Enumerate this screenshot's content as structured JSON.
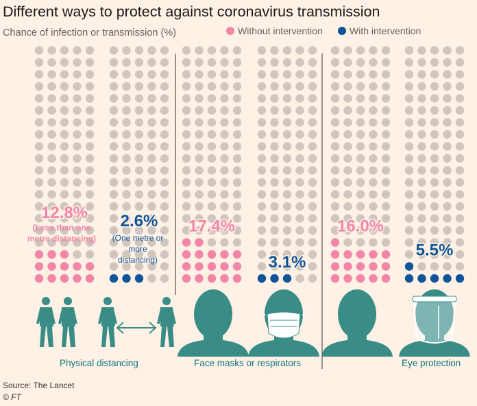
{
  "title": "Different ways to protect against coronavirus transmission",
  "subtitle": "Chance of infection or transmission (%)",
  "legend": {
    "without": "Without intervention",
    "with": "With  intervention"
  },
  "colors": {
    "without": "#f285a8",
    "with": "#0f5499",
    "empty": "#cec6bf",
    "icon": "#3a8d87",
    "label": "#0d7680",
    "divider": "#33302e"
  },
  "categories": {
    "physical": {
      "label": "Physical distancing",
      "without_note": "(Less than one metre distancing)",
      "with_note": "(One metre or more distancing)"
    },
    "masks": {
      "label": "Face masks or respirators"
    },
    "eyes": {
      "label": "Eye protection"
    }
  },
  "icons": [
    "walking-person-icon",
    "walking-person-icon",
    "walking-person-icon",
    "double-arrow-icon",
    "walking-person-icon",
    "head-icon",
    "face-mask-icon",
    "head-icon",
    "face-shield-icon"
  ],
  "source": "Source: The Lancet",
  "credit": "© FT",
  "chart_data": {
    "type": "waffle",
    "title": "Different ways to protect against coronavirus transmission",
    "ylabel": "Chance of infection or transmission (%)",
    "units_per_grid": 100,
    "series": [
      {
        "category": "Physical distancing",
        "name": "Without intervention",
        "value": 12.8,
        "label": "12.8%"
      },
      {
        "category": "Physical distancing",
        "name": "With intervention",
        "value": 2.6,
        "label": "2.6%"
      },
      {
        "category": "Face masks or respirators",
        "name": "Without intervention",
        "value": 17.4,
        "label": "17.4%"
      },
      {
        "category": "Face masks or respirators",
        "name": "With intervention",
        "value": 3.1,
        "label": "3.1%"
      },
      {
        "category": "Eye protection",
        "name": "Without intervention",
        "value": 16.0,
        "label": "16.0%"
      },
      {
        "category": "Eye protection",
        "name": "With intervention",
        "value": 5.5,
        "label": "5.5%"
      }
    ]
  }
}
